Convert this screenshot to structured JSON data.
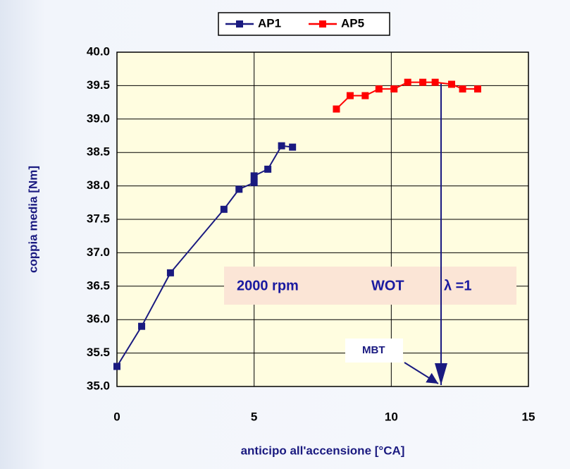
{
  "chart_data": {
    "type": "line",
    "x_label": "anticipo all'accensione [°CA]",
    "y_label": "coppia media [Nm]",
    "series": [
      {
        "name": "AP1",
        "color": "#1a1a80",
        "x": [
          0,
          0.9,
          1.95,
          3.9,
          4.45,
          5,
          5,
          5.5,
          6,
          6.4
        ],
        "values": [
          35.3,
          35.9,
          36.7,
          37.65,
          37.95,
          38.05,
          38.15,
          38.25,
          38.6,
          38.58
        ]
      },
      {
        "name": "AP5",
        "color": "#ff0000",
        "x": [
          8,
          8.5,
          9.05,
          9.55,
          10.1,
          10.6,
          11.15,
          11.6,
          12.2,
          12.6,
          13.15
        ],
        "values": [
          39.15,
          39.35,
          39.35,
          39.45,
          39.45,
          39.55,
          39.55,
          39.55,
          39.52,
          39.45,
          39.45
        ]
      }
    ],
    "xlim": [
      0,
      15
    ],
    "xticks": [
      0,
      5,
      10,
      15
    ],
    "ylim": [
      35,
      40
    ],
    "yticks": [
      {
        "value": 35,
        "label": "35.0"
      },
      35.5,
      {
        "value": 36,
        "label": "36.0"
      },
      36.5,
      {
        "value": 37,
        "label": "37.0"
      },
      37.5,
      {
        "value": 38,
        "label": "38.0"
      },
      38.5,
      {
        "value": 39,
        "label": "39.0"
      },
      39.5,
      {
        "value": 40,
        "label": "40.0"
      }
    ],
    "grid": true,
    "annotations": [
      "2000 rpm",
      "WOT",
      "λ =1",
      "MBT"
    ]
  }
}
